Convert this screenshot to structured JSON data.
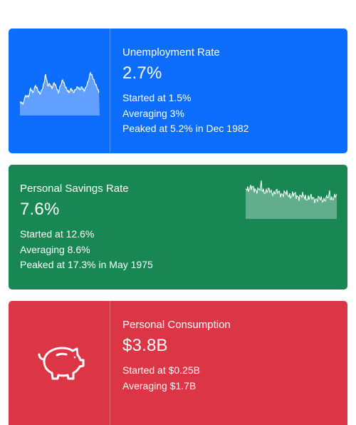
{
  "cards": [
    {
      "title": "Unemployment Rate",
      "value": "2.7%",
      "stats": [
        "Started at 1.5%",
        "Averaging 3%",
        "Peaked at 5.2% in Dec 1982"
      ],
      "icon": "sparkline",
      "color": "#0d6efd"
    },
    {
      "title": "Personal Savings Rate",
      "value": "7.6%",
      "stats": [
        "Started at 12.6%",
        "Averaging 8.6%",
        "Peaked at 17.3% in May 1975"
      ],
      "icon": "sparkline",
      "color": "#198754"
    },
    {
      "title": "Personal Consumption",
      "value": "$3.8B",
      "stats": [
        "Started at $0.25B",
        "Averaging $1.7B"
      ],
      "icon": "piggy-bank-icon",
      "color": "#dc3545"
    }
  ]
}
